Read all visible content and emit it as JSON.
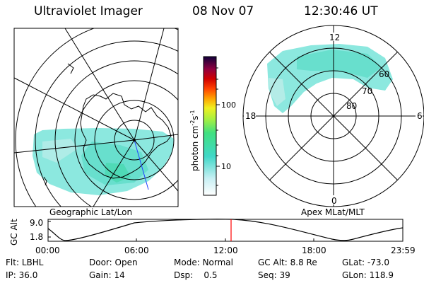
{
  "header": {
    "instrument": "Ultraviolet Imager",
    "date": "08 Nov 07",
    "time": "12:30:46 UT"
  },
  "left_panel": {
    "caption": "Geographic Lat/Lon"
  },
  "right_panel": {
    "caption": "Apex MLat/MLT",
    "mlt_labels": {
      "top": "12",
      "left": "18",
      "right": "6",
      "bottom": "0"
    },
    "lat_labels": [
      "60",
      "70",
      "80"
    ]
  },
  "colorbar": {
    "unit_label": "photon cm",
    "unit_exp1": "-2",
    "unit_mid": "s",
    "unit_exp2": "-1",
    "ticks": [
      "100",
      "10"
    ]
  },
  "timeline": {
    "ylabel": "GC Alt",
    "y_ticks": [
      "9.0",
      "1.8"
    ],
    "x_ticks": [
      "00:00",
      "06:00",
      "12:00",
      "18:00",
      "23:59"
    ],
    "marker_color": "#ff0000"
  },
  "footer": {
    "row1": [
      {
        "label": "Flt:",
        "value": "LBHL"
      },
      {
        "label": "Door:",
        "value": "Open"
      },
      {
        "label": "Mode:",
        "value": "Normal"
      },
      {
        "label": "GC Alt:",
        "value": "8.8 Re"
      },
      {
        "label": "GLat:",
        "value": "-73.0"
      }
    ],
    "row2": [
      {
        "label": "IP:",
        "value": "36.0"
      },
      {
        "label": "Gain:",
        "value": "14"
      },
      {
        "label": "Dsp:",
        "value": "0.5"
      },
      {
        "label": "Seq:",
        "value": "39"
      },
      {
        "label": "GLon:",
        "value": "118.9"
      }
    ]
  }
}
